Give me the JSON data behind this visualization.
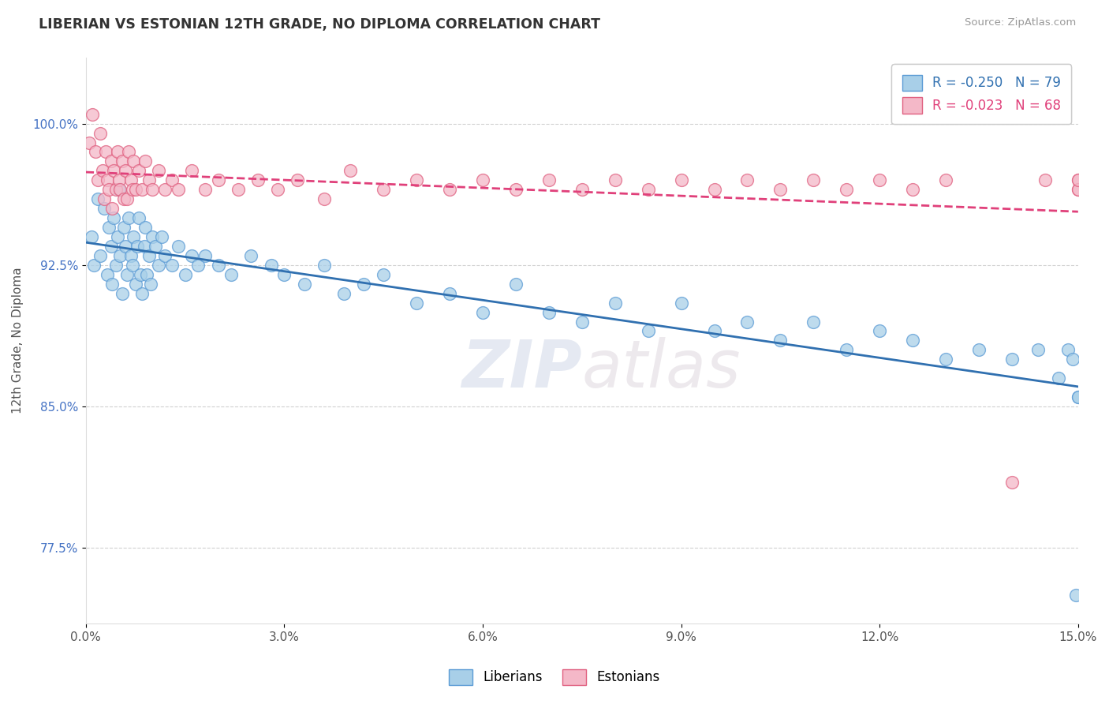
{
  "title": "LIBERIAN VS ESTONIAN 12TH GRADE, NO DIPLOMA CORRELATION CHART",
  "source": "Source: ZipAtlas.com",
  "ylabel": "12th Grade, No Diploma",
  "xlim": [
    0.0,
    15.0
  ],
  "ylim": [
    73.5,
    103.5
  ],
  "yticks": [
    77.5,
    85.0,
    92.5,
    100.0
  ],
  "xticks": [
    0.0,
    3.0,
    6.0,
    9.0,
    12.0,
    15.0
  ],
  "xtick_labels": [
    "0.0%",
    "3.0%",
    "6.0%",
    "9.0%",
    "12.0%",
    "15.0%"
  ],
  "ytick_labels": [
    "77.5%",
    "85.0%",
    "92.5%",
    "100.0%"
  ],
  "liberian_R": -0.25,
  "liberian_N": 79,
  "estonian_R": -0.023,
  "estonian_N": 68,
  "liberian_color": "#a8cfe8",
  "estonian_color": "#f4b8c8",
  "liberian_edge_color": "#5b9bd5",
  "estonian_edge_color": "#e06080",
  "liberian_line_color": "#3070b0",
  "estonian_line_color": "#e0407a",
  "background_color": "#ffffff",
  "liberian_x": [
    0.08,
    0.12,
    0.18,
    0.22,
    0.28,
    0.32,
    0.35,
    0.38,
    0.4,
    0.42,
    0.45,
    0.48,
    0.5,
    0.52,
    0.55,
    0.58,
    0.6,
    0.62,
    0.65,
    0.68,
    0.7,
    0.72,
    0.75,
    0.78,
    0.8,
    0.82,
    0.85,
    0.88,
    0.9,
    0.92,
    0.95,
    0.98,
    1.0,
    1.05,
    1.1,
    1.15,
    1.2,
    1.3,
    1.4,
    1.5,
    1.6,
    1.7,
    1.8,
    2.0,
    2.2,
    2.5,
    2.8,
    3.0,
    3.3,
    3.6,
    3.9,
    4.2,
    4.5,
    5.0,
    5.5,
    6.0,
    6.5,
    7.0,
    7.5,
    8.0,
    8.5,
    9.0,
    9.5,
    10.0,
    10.5,
    11.0,
    11.5,
    12.0,
    12.5,
    13.0,
    13.5,
    14.0,
    14.4,
    14.7,
    14.85,
    14.92,
    14.97,
    15.0,
    15.0
  ],
  "liberian_y": [
    94.0,
    92.5,
    96.0,
    93.0,
    95.5,
    92.0,
    94.5,
    93.5,
    91.5,
    95.0,
    92.5,
    94.0,
    96.5,
    93.0,
    91.0,
    94.5,
    93.5,
    92.0,
    95.0,
    93.0,
    92.5,
    94.0,
    91.5,
    93.5,
    95.0,
    92.0,
    91.0,
    93.5,
    94.5,
    92.0,
    93.0,
    91.5,
    94.0,
    93.5,
    92.5,
    94.0,
    93.0,
    92.5,
    93.5,
    92.0,
    93.0,
    92.5,
    93.0,
    92.5,
    92.0,
    93.0,
    92.5,
    92.0,
    91.5,
    92.5,
    91.0,
    91.5,
    92.0,
    90.5,
    91.0,
    90.0,
    91.5,
    90.0,
    89.5,
    90.5,
    89.0,
    90.5,
    89.0,
    89.5,
    88.5,
    89.5,
    88.0,
    89.0,
    88.5,
    87.5,
    88.0,
    87.5,
    88.0,
    86.5,
    88.0,
    87.5,
    75.0,
    85.5,
    85.5
  ],
  "estonian_x": [
    0.05,
    0.1,
    0.15,
    0.18,
    0.22,
    0.25,
    0.28,
    0.3,
    0.32,
    0.35,
    0.38,
    0.4,
    0.42,
    0.45,
    0.48,
    0.5,
    0.52,
    0.55,
    0.58,
    0.6,
    0.62,
    0.65,
    0.68,
    0.7,
    0.72,
    0.75,
    0.8,
    0.85,
    0.9,
    0.95,
    1.0,
    1.1,
    1.2,
    1.3,
    1.4,
    1.6,
    1.8,
    2.0,
    2.3,
    2.6,
    2.9,
    3.2,
    3.6,
    4.0,
    4.5,
    5.0,
    5.5,
    6.0,
    6.5,
    7.0,
    7.5,
    8.0,
    8.5,
    9.0,
    9.5,
    10.0,
    10.5,
    11.0,
    11.5,
    12.0,
    12.5,
    13.0,
    14.0,
    14.5,
    15.0,
    15.0,
    15.0,
    15.0
  ],
  "estonian_y": [
    99.0,
    100.5,
    98.5,
    97.0,
    99.5,
    97.5,
    96.0,
    98.5,
    97.0,
    96.5,
    98.0,
    95.5,
    97.5,
    96.5,
    98.5,
    97.0,
    96.5,
    98.0,
    96.0,
    97.5,
    96.0,
    98.5,
    97.0,
    96.5,
    98.0,
    96.5,
    97.5,
    96.5,
    98.0,
    97.0,
    96.5,
    97.5,
    96.5,
    97.0,
    96.5,
    97.5,
    96.5,
    97.0,
    96.5,
    97.0,
    96.5,
    97.0,
    96.0,
    97.5,
    96.5,
    97.0,
    96.5,
    97.0,
    96.5,
    97.0,
    96.5,
    97.0,
    96.5,
    97.0,
    96.5,
    97.0,
    96.5,
    97.0,
    96.5,
    97.0,
    96.5,
    97.0,
    81.0,
    97.0,
    96.5,
    97.0,
    96.5,
    97.0
  ]
}
